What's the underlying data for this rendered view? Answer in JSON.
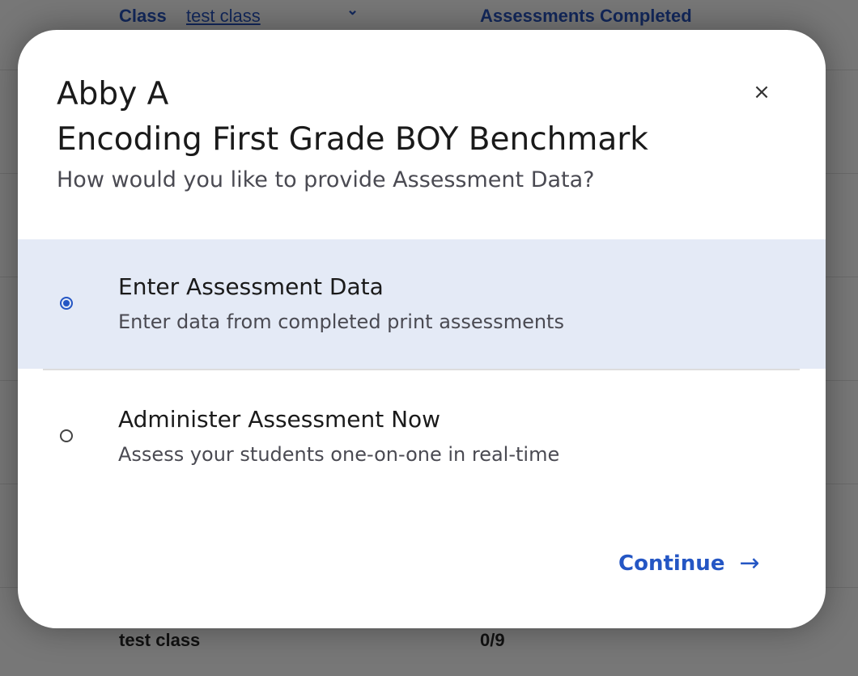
{
  "background": {
    "header": {
      "class_label": "Class",
      "class_value": "test class",
      "assessments_header": "Assessments Completed"
    },
    "row": {
      "class": "test class",
      "completed": "0/9"
    }
  },
  "modal": {
    "student_name": "Abby A",
    "assessment_name": "Encoding First Grade BOY Benchmark",
    "question": "How would you like to provide Assessment Data?",
    "close_icon": "×",
    "options": [
      {
        "label": "Enter Assessment Data",
        "description": "Enter data from completed print assessments",
        "selected": true
      },
      {
        "label": "Administer Assessment Now",
        "description": "Assess your students one-on-one in real-time",
        "selected": false
      }
    ],
    "continue_label": "Continue",
    "continue_icon": "→"
  },
  "colors": {
    "accent": "#2456c4",
    "selected_bg": "#e4eaf6",
    "overlay": "#777777"
  }
}
